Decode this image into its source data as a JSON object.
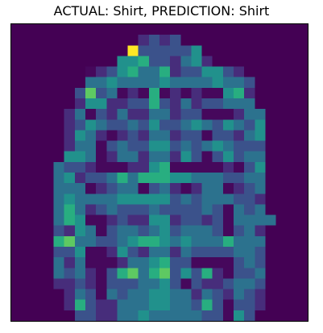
{
  "title": "ACTUAL: Shirt, PREDICTION: Shirt",
  "image": {
    "colormap": "viridis",
    "rows": 28,
    "cols": 28,
    "pixels": [
      "0000000000000000000000000000",
      "0000000000002323000000000000",
      "0000000000093333350000000000",
      "0000000000556332452000000000",
      "0000000123564462335532000000",
      "0000000445444454444544300000",
      "0000003734121612121156200000",
      "0000002552233632423344400000",
      "0000024132422442331112440000",
      "0000023543343533454354350000",
      "0000025421232442331332450000",
      "0000024413433553434543330000",
      "0000055412442442531353440000",
      "0000433211122561111121350000",
      "0000452334646665544433440000",
      "0000444123441342124412340000",
      "0000454444555553434443320000",
      "0000464234333433334314340000",
      "0000465112322552332314444000",
      "0000325413443453444313420000",
      "0000674433456654544464440000",
      "0000335112532442433334430000",
      "0000424111244563311113430000",
      "0000434213674673536213340000",
      "0000223213334453132234430000",
      "0000024314344554424324320000",
      "0000026322444554436313320000",
      "0000003322445444443315300000"
    ]
  }
}
